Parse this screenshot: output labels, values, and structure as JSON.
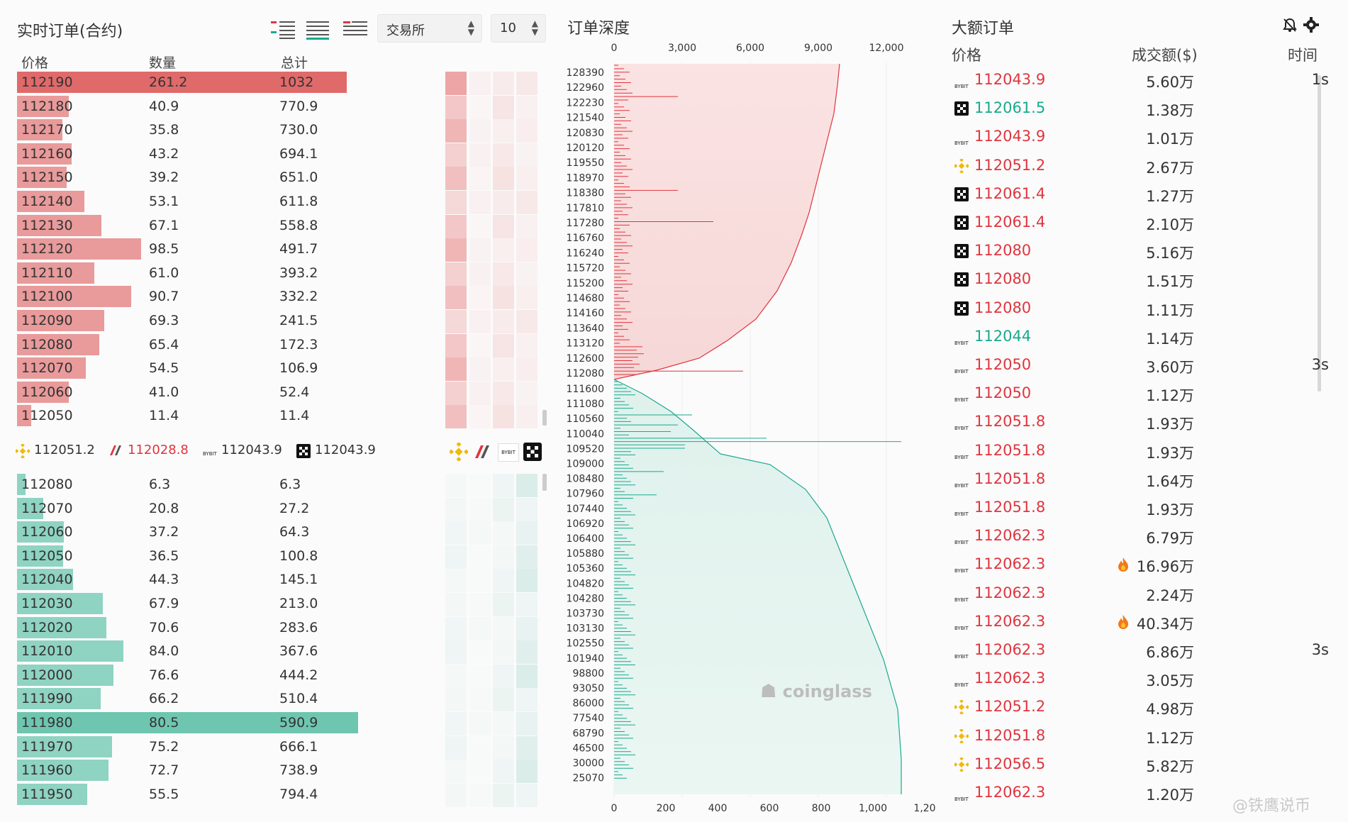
{
  "orderbook": {
    "title": "实时订单(合约)",
    "exchange_select": "交易所",
    "depth_select": "10",
    "headers": {
      "price": "价格",
      "qty": "数量",
      "total": "总计"
    },
    "asks": [
      {
        "price": "112190",
        "qty": "261.2",
        "total": "1032"
      },
      {
        "price": "112180",
        "qty": "40.9",
        "total": "770.9"
      },
      {
        "price": "112170",
        "qty": "35.8",
        "total": "730.0"
      },
      {
        "price": "112160",
        "qty": "43.2",
        "total": "694.1"
      },
      {
        "price": "112150",
        "qty": "39.2",
        "total": "651.0"
      },
      {
        "price": "112140",
        "qty": "53.1",
        "total": "611.8"
      },
      {
        "price": "112130",
        "qty": "67.1",
        "total": "558.8"
      },
      {
        "price": "112120",
        "qty": "98.5",
        "total": "491.7"
      },
      {
        "price": "112110",
        "qty": "61.0",
        "total": "393.2"
      },
      {
        "price": "112100",
        "qty": "90.7",
        "total": "332.2"
      },
      {
        "price": "112090",
        "qty": "69.3",
        "total": "241.5"
      },
      {
        "price": "112080",
        "qty": "65.4",
        "total": "172.3"
      },
      {
        "price": "112070",
        "qty": "54.5",
        "total": "106.9"
      },
      {
        "price": "112060",
        "qty": "41.0",
        "total": "52.4"
      },
      {
        "price": "112050",
        "qty": "11.4",
        "total": "11.4"
      }
    ],
    "exchange_prices": [
      {
        "icon": "binance-icon",
        "price": "112051.2",
        "color": "#333333"
      },
      {
        "icon": "kraken-icon",
        "price": "112028.8",
        "color": "#e0353e"
      },
      {
        "icon": "bybit-icon",
        "price": "112043.9",
        "color": "#333333"
      },
      {
        "icon": "okx-icon",
        "price": "112043.9",
        "color": "#333333"
      }
    ],
    "bids": [
      {
        "price": "112080",
        "qty": "6.3",
        "total": "6.3"
      },
      {
        "price": "112070",
        "qty": "20.8",
        "total": "27.2"
      },
      {
        "price": "112060",
        "qty": "37.2",
        "total": "64.3"
      },
      {
        "price": "112050",
        "qty": "36.5",
        "total": "100.8"
      },
      {
        "price": "112040",
        "qty": "44.3",
        "total": "145.1"
      },
      {
        "price": "112030",
        "qty": "67.9",
        "total": "213.0"
      },
      {
        "price": "112020",
        "qty": "70.6",
        "total": "283.6"
      },
      {
        "price": "112010",
        "qty": "84.0",
        "total": "367.6"
      },
      {
        "price": "112000",
        "qty": "76.6",
        "total": "444.2"
      },
      {
        "price": "111990",
        "qty": "66.2",
        "total": "510.4"
      },
      {
        "price": "111980",
        "qty": "80.5",
        "total": "590.9"
      },
      {
        "price": "111970",
        "qty": "75.2",
        "total": "666.1"
      },
      {
        "price": "111960",
        "qty": "72.7",
        "total": "738.9"
      },
      {
        "price": "111950",
        "qty": "55.5",
        "total": "794.4"
      }
    ]
  },
  "depth": {
    "title": "订单深度",
    "top_axis": [
      "0",
      "3,000",
      "6,000",
      "9,000",
      "12,000"
    ],
    "bottom_axis": [
      "0",
      "200",
      "400",
      "600",
      "800",
      "1,000",
      "1,20"
    ],
    "ask_prices": [
      "128390",
      "122960",
      "122230",
      "121540",
      "120830",
      "120120",
      "119550",
      "118970",
      "118380",
      "117810",
      "117280",
      "116760",
      "116240",
      "115720",
      "115200",
      "114680",
      "114160",
      "113640",
      "113120",
      "112600",
      "112080"
    ],
    "bid_prices": [
      "111600",
      "111080",
      "110560",
      "110040",
      "109520",
      "109000",
      "108480",
      "107960",
      "107440",
      "106920",
      "106400",
      "105880",
      "105360",
      "104820",
      "104280",
      "103730",
      "103130",
      "102550",
      "101940",
      "98800",
      "93050",
      "86000",
      "77540",
      "68790",
      "46500",
      "30000",
      "25070"
    ],
    "watermark": "coinglass",
    "colors": {
      "ask": "#e0353e",
      "bid": "#1aa98e"
    }
  },
  "large_orders": {
    "title": "大额订单",
    "headers": {
      "price": "价格",
      "amount": "成交额($)",
      "time": "时间"
    },
    "rows": [
      {
        "ex": "bybit",
        "price": "112043.9",
        "side": "red",
        "amount": "5.60万",
        "time": "1s",
        "fire": false
      },
      {
        "ex": "okx",
        "price": "112061.5",
        "side": "green",
        "amount": "1.38万",
        "time": "",
        "fire": false
      },
      {
        "ex": "bybit",
        "price": "112043.9",
        "side": "red",
        "amount": "1.01万",
        "time": "",
        "fire": false
      },
      {
        "ex": "binance",
        "price": "112051.2",
        "side": "red",
        "amount": "2.67万",
        "time": "",
        "fire": false
      },
      {
        "ex": "okx",
        "price": "112061.4",
        "side": "red",
        "amount": "1.27万",
        "time": "",
        "fire": false
      },
      {
        "ex": "okx",
        "price": "112061.4",
        "side": "red",
        "amount": "2.10万",
        "time": "",
        "fire": false
      },
      {
        "ex": "okx",
        "price": "112080",
        "side": "red",
        "amount": "5.16万",
        "time": "",
        "fire": false
      },
      {
        "ex": "okx",
        "price": "112080",
        "side": "red",
        "amount": "1.51万",
        "time": "",
        "fire": false
      },
      {
        "ex": "okx",
        "price": "112080",
        "side": "red",
        "amount": "1.11万",
        "time": "",
        "fire": false
      },
      {
        "ex": "bybit",
        "price": "112044",
        "side": "green",
        "amount": "1.14万",
        "time": "",
        "fire": false
      },
      {
        "ex": "bybit",
        "price": "112050",
        "side": "red",
        "amount": "3.60万",
        "time": "3s",
        "fire": false
      },
      {
        "ex": "bybit",
        "price": "112050",
        "side": "red",
        "amount": "1.12万",
        "time": "",
        "fire": false
      },
      {
        "ex": "bybit",
        "price": "112051.8",
        "side": "red",
        "amount": "1.93万",
        "time": "",
        "fire": false
      },
      {
        "ex": "bybit",
        "price": "112051.8",
        "side": "red",
        "amount": "1.93万",
        "time": "",
        "fire": false
      },
      {
        "ex": "bybit",
        "price": "112051.8",
        "side": "red",
        "amount": "1.64万",
        "time": "",
        "fire": false
      },
      {
        "ex": "bybit",
        "price": "112051.8",
        "side": "red",
        "amount": "1.93万",
        "time": "",
        "fire": false
      },
      {
        "ex": "bybit",
        "price": "112062.3",
        "side": "red",
        "amount": "6.79万",
        "time": "",
        "fire": false
      },
      {
        "ex": "bybit",
        "price": "112062.3",
        "side": "red",
        "amount": "16.96万",
        "time": "",
        "fire": true
      },
      {
        "ex": "bybit",
        "price": "112062.3",
        "side": "red",
        "amount": "2.24万",
        "time": "",
        "fire": false
      },
      {
        "ex": "bybit",
        "price": "112062.3",
        "side": "red",
        "amount": "40.34万",
        "time": "",
        "fire": true
      },
      {
        "ex": "bybit",
        "price": "112062.3",
        "side": "red",
        "amount": "6.86万",
        "time": "3s",
        "fire": false
      },
      {
        "ex": "bybit",
        "price": "112062.3",
        "side": "red",
        "amount": "3.05万",
        "time": "",
        "fire": false
      },
      {
        "ex": "binance",
        "price": "112051.2",
        "side": "red",
        "amount": "4.98万",
        "time": "",
        "fire": false
      },
      {
        "ex": "binance",
        "price": "112051.8",
        "side": "red",
        "amount": "1.12万",
        "time": "",
        "fire": false
      },
      {
        "ex": "binance",
        "price": "112056.5",
        "side": "red",
        "amount": "5.82万",
        "time": "",
        "fire": false
      },
      {
        "ex": "bybit",
        "price": "112062.3",
        "side": "red",
        "amount": "1.20万",
        "time": "",
        "fire": false
      }
    ]
  },
  "watermark_text": "@铁鹰说币"
}
